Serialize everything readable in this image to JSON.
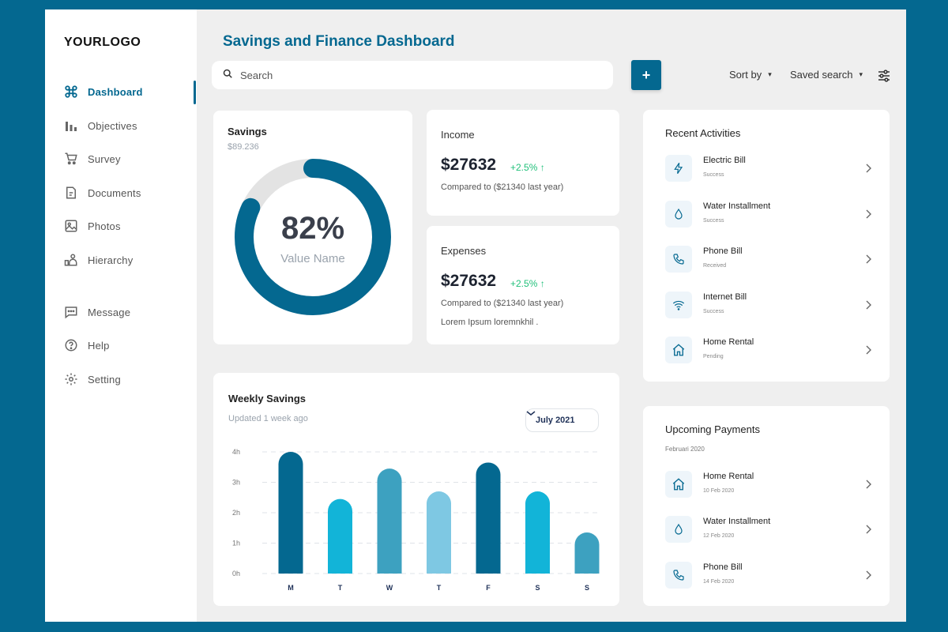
{
  "sidebar": {
    "logo": "YOURLOGO",
    "items": [
      {
        "label": "Dashboard",
        "icon": "command-icon"
      },
      {
        "label": "Objectives",
        "icon": "bar-chart-icon"
      },
      {
        "label": "Survey",
        "icon": "cart-icon"
      },
      {
        "label": "Documents",
        "icon": "document-icon"
      },
      {
        "label": "Photos",
        "icon": "image-icon"
      },
      {
        "label": "Hierarchy",
        "icon": "hierarchy-icon"
      },
      {
        "label": "Message",
        "icon": "message-icon"
      },
      {
        "label": "Help",
        "icon": "help-icon"
      },
      {
        "label": "Setting",
        "icon": "gear-icon"
      }
    ],
    "active": "Dashboard"
  },
  "header": {
    "title": "Savings and Finance Dashboard",
    "search_placeholder": "Search",
    "add_label": "+",
    "sort_label": "Sort by",
    "saved_search_label": "Saved search"
  },
  "savings": {
    "title": "Savings",
    "amount": "$89.236",
    "percent": "82%",
    "percent_value": 82,
    "value_label": "Value Name"
  },
  "income": {
    "title": "Income",
    "amount": "$27632",
    "change": "+2.5% ↑",
    "compare": "Compared to ($21340 last year)"
  },
  "expenses": {
    "title": "Expenses",
    "amount": "$27632",
    "change": "+2.5% ↑",
    "compare": "Compared to ($21340 last year)",
    "note": "Lorem Ipsum loremnkhil ."
  },
  "weekly": {
    "title": "Weekly Savings",
    "updated": "Updated 1 week ago",
    "month": "July 2021"
  },
  "chart_data": {
    "type": "bar",
    "categories": [
      "M",
      "T",
      "W",
      "T",
      "F",
      "S",
      "S"
    ],
    "values": [
      4.0,
      2.45,
      3.45,
      2.7,
      3.65,
      2.7,
      1.35
    ],
    "yticks": [
      "0h",
      "1h",
      "2h",
      "3h",
      "4h"
    ],
    "ylim": [
      0,
      4
    ],
    "colors": [
      "#046890",
      "#12b4d8",
      "#3da1c0",
      "#7ec8e3",
      "#046890",
      "#12b4d8",
      "#3da1c0"
    ],
    "grid": true
  },
  "recent": {
    "title": "Recent Activities",
    "items": [
      {
        "name": "Electric Bill",
        "status": "Success",
        "icon": "lightning-icon"
      },
      {
        "name": "Water Installment",
        "status": "Success",
        "icon": "water-drop-icon"
      },
      {
        "name": "Phone Bill",
        "status": "Received",
        "icon": "phone-icon"
      },
      {
        "name": "Internet Bill",
        "status": "Success",
        "icon": "wifi-icon"
      },
      {
        "name": "Home Rental",
        "status": "Pending",
        "icon": "home-icon"
      }
    ]
  },
  "upcoming": {
    "title": "Upcoming Payments",
    "subtitle": "Februari 2020",
    "items": [
      {
        "name": "Home Rental",
        "date": "10 Feb 2020",
        "icon": "home-icon"
      },
      {
        "name": "Water Installment",
        "date": "12 Feb 2020",
        "icon": "water-drop-icon"
      },
      {
        "name": "Phone Bill",
        "date": "14 Feb 2020",
        "icon": "phone-icon"
      }
    ]
  }
}
